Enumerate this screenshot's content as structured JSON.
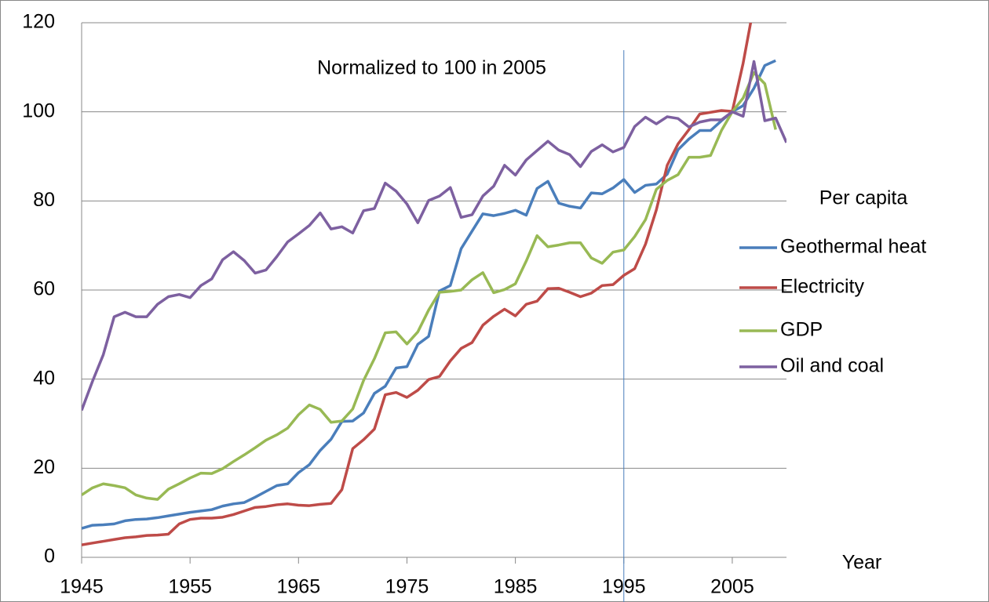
{
  "chart_data": {
    "type": "line",
    "annotation": "Normalized to 100 in 2005",
    "legend_title": "Per capita",
    "x_label": "Year",
    "x": [
      1945,
      1946,
      1947,
      1948,
      1949,
      1950,
      1951,
      1952,
      1953,
      1954,
      1955,
      1956,
      1957,
      1958,
      1959,
      1960,
      1961,
      1962,
      1963,
      1964,
      1965,
      1966,
      1967,
      1968,
      1969,
      1970,
      1971,
      1972,
      1973,
      1974,
      1975,
      1976,
      1977,
      1978,
      1979,
      1980,
      1981,
      1982,
      1983,
      1984,
      1985,
      1986,
      1987,
      1988,
      1989,
      1990,
      1991,
      1992,
      1993,
      1994,
      1995,
      1996,
      1997,
      1998,
      1999,
      2000,
      2001,
      2002,
      2003,
      2004,
      2005,
      2006,
      2007,
      2008,
      2009,
      2010
    ],
    "series": [
      {
        "name": "Geothermal heat",
        "color": "#4a7ebb",
        "values": [
          6.5,
          7.2,
          7.3,
          7.5,
          8.2,
          8.5,
          8.6,
          8.9,
          9.3,
          9.7,
          10.1,
          10.4,
          10.7,
          11.5,
          12.0,
          12.3,
          13.5,
          14.8,
          16.1,
          16.5,
          19.0,
          20.8,
          24.0,
          26.5,
          30.5,
          30.6,
          32.4,
          36.8,
          38.4,
          42.5,
          42.8,
          47.8,
          49.6,
          59.8,
          61.0,
          69.3,
          73.2,
          77.1,
          76.7,
          77.2,
          77.9,
          76.8,
          82.8,
          84.4,
          79.5,
          78.8,
          78.4,
          81.8,
          81.6,
          82.9,
          84.8,
          81.9,
          83.5,
          83.8,
          86.0,
          91.5,
          93.9,
          95.8,
          95.8,
          98.0,
          100,
          101.4,
          105.3,
          110.4,
          111.5,
          null
        ]
      },
      {
        "name": "Electricity",
        "color": "#be4b48",
        "values": [
          2.8,
          3.2,
          3.6,
          4.0,
          4.4,
          4.6,
          4.9,
          5.0,
          5.2,
          7.5,
          8.5,
          8.8,
          8.8,
          9.0,
          9.6,
          10.4,
          11.2,
          11.4,
          11.8,
          12.0,
          11.7,
          11.6,
          11.9,
          12.1,
          15.2,
          24.4,
          26.4,
          28.8,
          36.5,
          37.0,
          35.9,
          37.5,
          39.9,
          40.6,
          44.1,
          46.9,
          48.2,
          52.1,
          54.1,
          55.7,
          54.2,
          56.8,
          57.5,
          60.3,
          60.4,
          59.5,
          58.5,
          59.3,
          61.0,
          61.2,
          63.3,
          64.8,
          70.3,
          78.0,
          88.0,
          92.8,
          96.0,
          99.5,
          99.9,
          100.3,
          100.1,
          110.9,
          124,
          null,
          null,
          null
        ]
      },
      {
        "name": "GDP",
        "color": "#98b954",
        "values": [
          14.0,
          15.6,
          16.5,
          16.1,
          15.6,
          14.0,
          13.3,
          13.0,
          15.3,
          16.5,
          17.8,
          18.9,
          18.8,
          19.9,
          21.5,
          23.0,
          24.6,
          26.3,
          27.5,
          29.0,
          32.0,
          34.2,
          33.2,
          30.3,
          30.6,
          33.3,
          39.7,
          44.6,
          50.4,
          50.6,
          47.9,
          50.6,
          55.5,
          59.5,
          59.7,
          60.0,
          62.3,
          63.9,
          59.4,
          60.1,
          61.4,
          66.5,
          72.2,
          69.7,
          70.1,
          70.6,
          70.6,
          67.2,
          66.0,
          68.5,
          69.0,
          72.0,
          75.8,
          82.6,
          84.6,
          85.9,
          89.8,
          89.8,
          90.2,
          95.8,
          100,
          103.1,
          108.8,
          106.3,
          96.0,
          null
        ]
      },
      {
        "name": "Oil and coal",
        "color": "#7d60a0",
        "values": [
          33.0,
          39.5,
          45.5,
          54.0,
          55.0,
          54.0,
          54.0,
          56.8,
          58.5,
          59.0,
          58.3,
          61.0,
          62.5,
          66.8,
          68.6,
          66.6,
          63.8,
          64.5,
          67.5,
          70.8,
          72.6,
          74.5,
          77.3,
          73.7,
          74.2,
          72.8,
          77.8,
          78.3,
          84.0,
          82.2,
          79.3,
          75.1,
          80.1,
          81.1,
          83.0,
          76.3,
          76.9,
          81.1,
          83.3,
          88.0,
          85.8,
          89.2,
          91.3,
          93.4,
          91.4,
          90.4,
          87.7,
          91.1,
          92.6,
          91.0,
          92.0,
          96.7,
          98.8,
          97.3,
          98.9,
          98.5,
          96.6,
          97.7,
          98.2,
          98.2,
          100,
          99.0,
          111.3,
          98.0,
          98.6,
          93.1
        ]
      }
    ],
    "vline": 1995,
    "xlim": [
      1945,
      2010
    ],
    "xticks": [
      1945,
      1955,
      1965,
      1975,
      1985,
      1995,
      2005
    ],
    "ylim": [
      0,
      120
    ],
    "yticks": [
      0,
      20,
      40,
      60,
      80,
      100,
      120
    ],
    "grid": true,
    "legend": "right"
  }
}
